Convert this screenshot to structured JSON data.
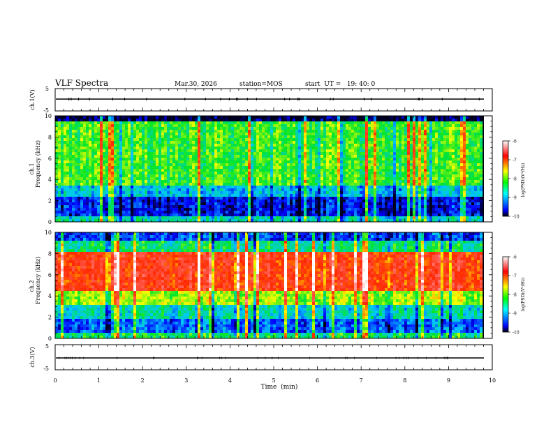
{
  "header": {
    "title": "VLF Spectra",
    "date": "Mar.30, 2026",
    "station": "station=MOS",
    "start": "start  UT =   19: 40: 0"
  },
  "chart_data": {
    "type": "heatmap",
    "title": "VLF Spectra",
    "x": {
      "label": "Time  (min)",
      "range": [
        0,
        10
      ],
      "ticks": [
        0,
        1,
        2,
        3,
        4,
        5,
        6,
        7,
        8,
        9,
        10
      ],
      "data_extent": [
        0,
        9.8
      ]
    },
    "panels": [
      {
        "id": "ch1-waveform",
        "type": "line",
        "ylabel": "ch.1(V)",
        "ylim": [
          -5,
          5
        ],
        "yticks": [
          5,
          -5
        ],
        "level": 0
      },
      {
        "id": "ch1-spectrogram",
        "type": "heatmap",
        "ylabel_line1": "ch.1",
        "ylabel_line2": "Frequency (kHz)",
        "ylim": [
          0,
          10
        ],
        "yticks": [
          0,
          2,
          4,
          6,
          8,
          10
        ],
        "dominant_band_khz": [
          2.5,
          9.5
        ],
        "dominant_log_psd": -8.3,
        "low_band_khz": [
          0,
          2.5
        ],
        "low_band_log_psd": -9.4
      },
      {
        "id": "ch2-spectrogram",
        "type": "heatmap",
        "ylabel_line1": "ch.2",
        "ylabel_line2": "Frequency (kHz)",
        "ylim": [
          0,
          10
        ],
        "yticks": [
          0,
          2,
          4,
          6,
          8,
          10
        ],
        "peak_band_khz": [
          4.5,
          8
        ],
        "peak_log_psd": -7.0,
        "low_band_khz": [
          0,
          2
        ],
        "low_band_log_psd": -9.2
      },
      {
        "id": "ch3-waveform",
        "type": "line",
        "ylabel": "ch.3(V)",
        "ylim": [
          -5,
          5
        ],
        "yticks": [
          5,
          -5
        ],
        "level": 0
      }
    ],
    "colorbar": {
      "label": "log(PSD)(V²/Hz)",
      "range": [
        -10,
        -6
      ],
      "ticks": [
        "-6",
        "-7",
        "-8",
        "-9",
        "-10"
      ],
      "colors": [
        "#000000",
        "#0000ff",
        "#00ffff",
        "#00ff00",
        "#ffff00",
        "#ff0000",
        "#ffffff"
      ]
    }
  }
}
